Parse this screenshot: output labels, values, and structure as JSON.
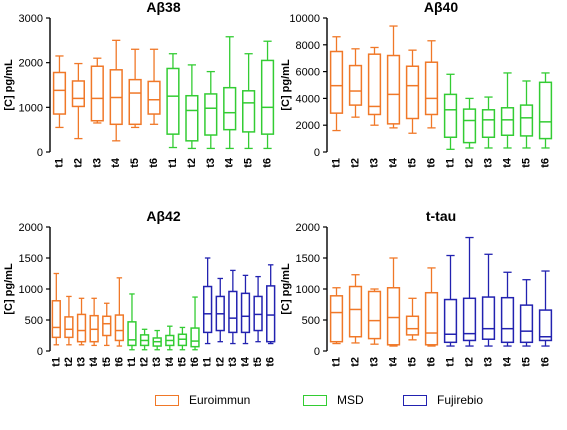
{
  "colors": {
    "euroimmun": "#F07828",
    "msd": "#33CC33",
    "fujirebio": "#2222B0"
  },
  "legend": [
    {
      "label": "Euroimmun",
      "color": "#F07828"
    },
    {
      "label": "MSD",
      "color": "#33CC33"
    },
    {
      "label": "Fujirebio",
      "color": "#2222B0"
    }
  ],
  "chart_data": [
    {
      "type": "box",
      "title": "Aβ38",
      "ylabel": "[C] pg/mL",
      "ylim": [
        0,
        3000
      ],
      "yticks": [
        0,
        1000,
        2000,
        3000
      ],
      "categories": [
        "t1",
        "t2",
        "t3",
        "t4",
        "t5",
        "t6",
        "t1",
        "t2",
        "t3",
        "t4",
        "t5",
        "t6"
      ],
      "series": [
        {
          "name": "Euroimmun",
          "color": "#F07828",
          "boxes": [
            {
              "min": 550,
              "q1": 850,
              "median": 1380,
              "q3": 1780,
              "max": 2150
            },
            {
              "min": 300,
              "q1": 1020,
              "median": 1200,
              "q3": 1590,
              "max": 1980
            },
            {
              "min": 650,
              "q1": 700,
              "median": 1200,
              "q3": 1920,
              "max": 2100
            },
            {
              "min": 250,
              "q1": 620,
              "median": 1220,
              "q3": 1840,
              "max": 2500
            },
            {
              "min": 550,
              "q1": 620,
              "median": 1320,
              "q3": 1620,
              "max": 2300
            },
            {
              "min": 620,
              "q1": 850,
              "median": 1170,
              "q3": 1580,
              "max": 2300
            }
          ]
        },
        {
          "name": "MSD",
          "color": "#33CC33",
          "boxes": [
            {
              "min": 100,
              "q1": 400,
              "median": 1250,
              "q3": 1870,
              "max": 2200
            },
            {
              "min": 80,
              "q1": 250,
              "median": 930,
              "q3": 1260,
              "max": 1950
            },
            {
              "min": 80,
              "q1": 380,
              "median": 980,
              "q3": 1300,
              "max": 1800
            },
            {
              "min": 80,
              "q1": 500,
              "median": 880,
              "q3": 1440,
              "max": 2580
            },
            {
              "min": 80,
              "q1": 450,
              "median": 1100,
              "q3": 1370,
              "max": 2200
            },
            {
              "min": 80,
              "q1": 400,
              "median": 1000,
              "q3": 2050,
              "max": 2480
            }
          ]
        }
      ]
    },
    {
      "type": "box",
      "title": "Aβ40",
      "ylabel": "[C] pg/mL",
      "ylim": [
        0,
        10000
      ],
      "yticks": [
        0,
        2000,
        4000,
        6000,
        8000,
        10000
      ],
      "categories": [
        "t1",
        "t2",
        "t3",
        "t4",
        "t5",
        "t6",
        "t1",
        "t2",
        "t3",
        "t4",
        "t5",
        "t6"
      ],
      "series": [
        {
          "name": "Euroimmun",
          "color": "#F07828",
          "boxes": [
            {
              "min": 1600,
              "q1": 2900,
              "median": 4950,
              "q3": 7500,
              "max": 8600
            },
            {
              "min": 2600,
              "q1": 3500,
              "median": 4550,
              "q3": 6450,
              "max": 7700
            },
            {
              "min": 2000,
              "q1": 2800,
              "median": 3400,
              "q3": 7300,
              "max": 7800
            },
            {
              "min": 1800,
              "q1": 2100,
              "median": 4300,
              "q3": 7200,
              "max": 9400
            },
            {
              "min": 1400,
              "q1": 2500,
              "median": 4950,
              "q3": 6400,
              "max": 7600
            },
            {
              "min": 1800,
              "q1": 2800,
              "median": 4000,
              "q3": 6700,
              "max": 8300
            }
          ]
        },
        {
          "name": "MSD",
          "color": "#33CC33",
          "boxes": [
            {
              "min": 200,
              "q1": 1100,
              "median": 3150,
              "q3": 4300,
              "max": 5800
            },
            {
              "min": 300,
              "q1": 700,
              "median": 2350,
              "q3": 3200,
              "max": 4000
            },
            {
              "min": 300,
              "q1": 1100,
              "median": 2400,
              "q3": 3150,
              "max": 4100
            },
            {
              "min": 300,
              "q1": 1250,
              "median": 2400,
              "q3": 3300,
              "max": 5900
            },
            {
              "min": 300,
              "q1": 1200,
              "median": 2550,
              "q3": 3500,
              "max": 5300
            },
            {
              "min": 300,
              "q1": 1000,
              "median": 2250,
              "q3": 5200,
              "max": 5900
            }
          ]
        }
      ]
    },
    {
      "type": "box",
      "title": "Aβ42",
      "ylabel": "[C] pg/mL",
      "ylim": [
        0,
        2000
      ],
      "yticks": [
        0,
        500,
        1000,
        1500,
        2000
      ],
      "categories": [
        "t1",
        "t2",
        "t3",
        "t4",
        "t5",
        "t6",
        "t1",
        "t2",
        "t3",
        "t4",
        "t5",
        "t6",
        "t1",
        "t2",
        "t3",
        "t4",
        "t5",
        "t6"
      ],
      "series": [
        {
          "name": "Euroimmun",
          "color": "#F07828",
          "boxes": [
            {
              "min": 100,
              "q1": 220,
              "median": 380,
              "q3": 810,
              "max": 1250
            },
            {
              "min": 100,
              "q1": 220,
              "median": 350,
              "q3": 550,
              "max": 880
            },
            {
              "min": 100,
              "q1": 150,
              "median": 330,
              "q3": 590,
              "max": 850
            },
            {
              "min": 90,
              "q1": 150,
              "median": 350,
              "q3": 570,
              "max": 850
            },
            {
              "min": 90,
              "q1": 250,
              "median": 440,
              "q3": 560,
              "max": 770
            },
            {
              "min": 80,
              "q1": 170,
              "median": 330,
              "q3": 580,
              "max": 1180
            }
          ]
        },
        {
          "name": "MSD",
          "color": "#33CC33",
          "boxes": [
            {
              "min": 20,
              "q1": 90,
              "median": 180,
              "q3": 470,
              "max": 920
            },
            {
              "min": 20,
              "q1": 90,
              "median": 170,
              "q3": 260,
              "max": 350
            },
            {
              "min": 20,
              "q1": 80,
              "median": 150,
              "q3": 210,
              "max": 330
            },
            {
              "min": 20,
              "q1": 90,
              "median": 170,
              "q3": 250,
              "max": 400
            },
            {
              "min": 20,
              "q1": 90,
              "median": 190,
              "q3": 270,
              "max": 380
            },
            {
              "min": 20,
              "q1": 70,
              "median": 160,
              "q3": 370,
              "max": 870
            }
          ]
        },
        {
          "name": "Fujirebio",
          "color": "#2222B0",
          "boxes": [
            {
              "min": 120,
              "q1": 300,
              "median": 600,
              "q3": 1040,
              "max": 1500
            },
            {
              "min": 150,
              "q1": 330,
              "median": 600,
              "q3": 880,
              "max": 1170
            },
            {
              "min": 120,
              "q1": 300,
              "median": 530,
              "q3": 960,
              "max": 1300
            },
            {
              "min": 120,
              "q1": 300,
              "median": 560,
              "q3": 930,
              "max": 1220
            },
            {
              "min": 150,
              "q1": 330,
              "median": 590,
              "q3": 880,
              "max": 1200
            },
            {
              "min": 120,
              "q1": 150,
              "median": 580,
              "q3": 1050,
              "max": 1390
            }
          ]
        }
      ]
    },
    {
      "type": "box",
      "title": "t-tau",
      "ylabel": "[C] pg/mL",
      "ylim": [
        0,
        2000
      ],
      "yticks": [
        0,
        500,
        1000,
        1500,
        2000
      ],
      "categories": [
        "t1",
        "t2",
        "t3",
        "t4",
        "t5",
        "t6",
        "t1",
        "t2",
        "t3",
        "t4",
        "t5",
        "t6"
      ],
      "series": [
        {
          "name": "Euroimmun",
          "color": "#F07828",
          "boxes": [
            {
              "min": 120,
              "q1": 150,
              "median": 620,
              "q3": 890,
              "max": 1020
            },
            {
              "min": 130,
              "q1": 230,
              "median": 670,
              "q3": 1040,
              "max": 1230
            },
            {
              "min": 110,
              "q1": 200,
              "median": 490,
              "q3": 960,
              "max": 1000
            },
            {
              "min": 80,
              "q1": 100,
              "median": 540,
              "q3": 1020,
              "max": 1500
            },
            {
              "min": 180,
              "q1": 260,
              "median": 360,
              "q3": 560,
              "max": 850
            },
            {
              "min": 80,
              "q1": 100,
              "median": 290,
              "q3": 940,
              "max": 1340
            }
          ]
        },
        {
          "name": "Fujirebio",
          "color": "#2222B0",
          "boxes": [
            {
              "min": 80,
              "q1": 140,
              "median": 270,
              "q3": 830,
              "max": 1540
            },
            {
              "min": 80,
              "q1": 170,
              "median": 280,
              "q3": 850,
              "max": 1830
            },
            {
              "min": 80,
              "q1": 190,
              "median": 360,
              "q3": 870,
              "max": 1560
            },
            {
              "min": 80,
              "q1": 140,
              "median": 360,
              "q3": 860,
              "max": 1270
            },
            {
              "min": 80,
              "q1": 140,
              "median": 320,
              "q3": 740,
              "max": 1150
            },
            {
              "min": 80,
              "q1": 170,
              "median": 230,
              "q3": 660,
              "max": 1290
            }
          ]
        }
      ]
    }
  ]
}
